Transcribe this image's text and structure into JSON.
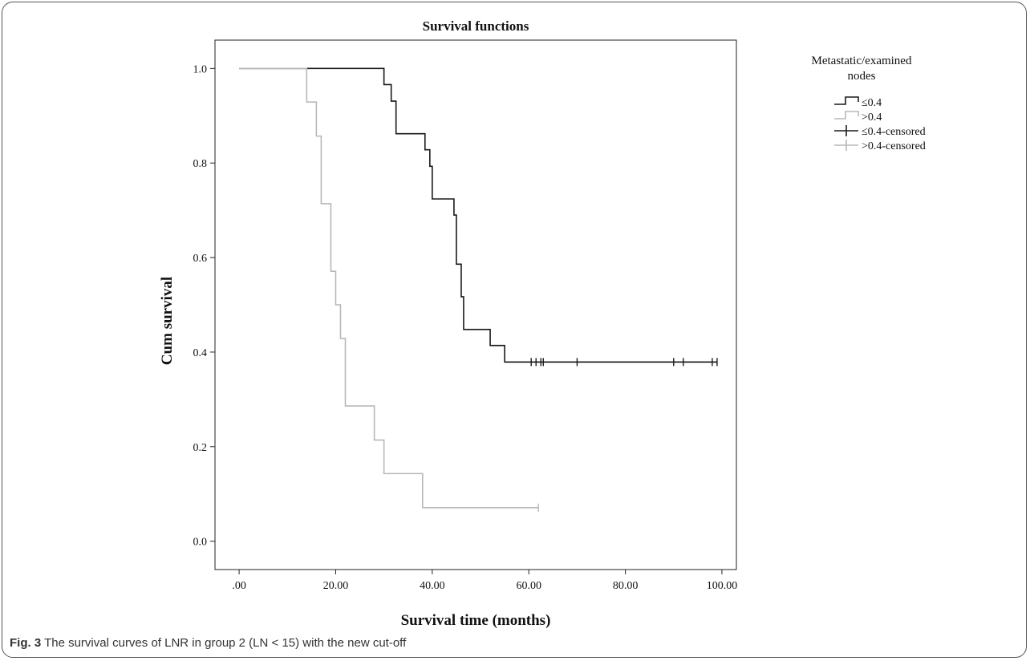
{
  "chart_data": {
    "type": "line",
    "title": "Survival functions",
    "xlabel": "Survival time (months)",
    "ylabel": "Cum survival",
    "xlim": [
      -5,
      103
    ],
    "ylim": [
      -0.06,
      1.06
    ],
    "x_ticks": [
      0,
      20,
      40,
      60,
      80,
      100
    ],
    "x_tick_labels": [
      ".00",
      "20.00",
      "40.00",
      "60.00",
      "80.00",
      "100.00"
    ],
    "y_ticks": [
      0,
      0.2,
      0.4,
      0.6,
      0.8,
      1.0
    ],
    "y_tick_labels": [
      "0.0",
      "0.2",
      "0.4",
      "0.6",
      "0.8",
      "1.0"
    ],
    "legend": {
      "title_line1": "Metastatic/examined",
      "title_line2": "nodes",
      "placement": "right",
      "entries": [
        "≤0.4",
        ">0.4",
        "≤0.4-censored",
        ">0.4-censored"
      ]
    },
    "series": [
      {
        "name": "≤0.4",
        "color": "#1a1a1a",
        "x": [
          0,
          30,
          31.5,
          32.5,
          33,
          38.5,
          39.5,
          40,
          44.5,
          45,
          46,
          46.5,
          52,
          55,
          99
        ],
        "y": [
          1.0,
          0.966,
          0.931,
          0.862,
          0.862,
          0.828,
          0.793,
          0.724,
          0.69,
          0.586,
          0.517,
          0.448,
          0.414,
          0.379,
          0.379
        ],
        "censored": [
          60.5,
          61.5,
          62.5,
          63,
          70,
          90,
          92,
          98,
          99
        ]
      },
      {
        "name": ">0.4",
        "color": "#b8b8b8",
        "x": [
          0,
          14,
          16,
          17,
          19,
          20,
          21,
          22,
          28,
          30,
          38,
          62
        ],
        "y": [
          1.0,
          0.929,
          0.857,
          0.714,
          0.571,
          0.5,
          0.429,
          0.286,
          0.214,
          0.143,
          0.071,
          0.071
        ],
        "censored": [
          62
        ]
      }
    ]
  },
  "caption": {
    "label": "Fig. 3",
    "text": " The survival curves of LNR in group 2 (LN < 15) with the new cut-off"
  }
}
